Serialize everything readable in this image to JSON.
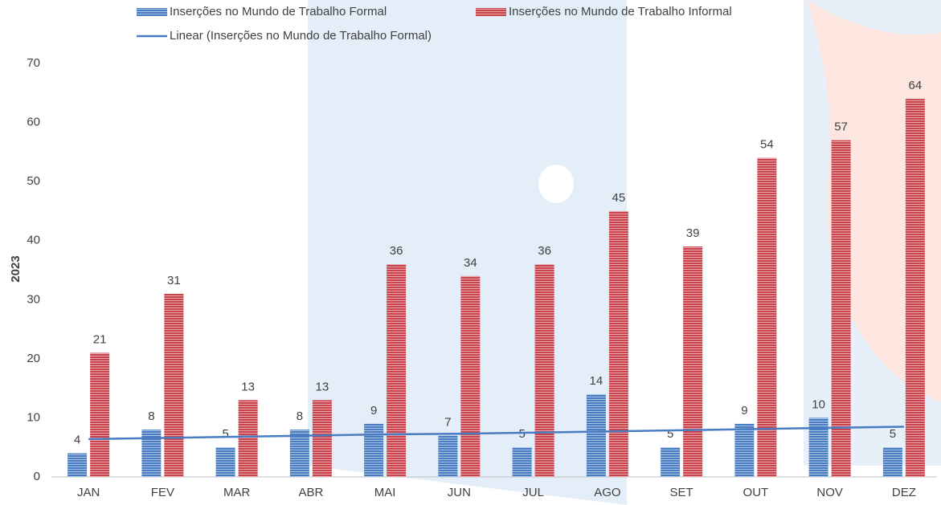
{
  "chart_data": {
    "type": "bar",
    "y_label": "2023",
    "categories": [
      "JAN",
      "FEV",
      "MAR",
      "ABR",
      "MAI",
      "JUN",
      "JUL",
      "AGO",
      "SET",
      "OUT",
      "NOV",
      "DEZ"
    ],
    "series": [
      {
        "name": "Inserções no Mundo de Trabalho Formal",
        "color": "#4a7cc2",
        "values": [
          4,
          8,
          5,
          8,
          9,
          7,
          5,
          14,
          5,
          9,
          10,
          5
        ]
      },
      {
        "name": "Inserções no Mundo de Trabalho Informal",
        "color": "#c9434c",
        "values": [
          21,
          31,
          13,
          13,
          36,
          34,
          36,
          45,
          39,
          54,
          57,
          64
        ]
      },
      {
        "name": "Linear (Inserções no Mundo de Trabalho Formal)",
        "type": "line",
        "color": "#4a7cc2",
        "values": [
          6.4,
          6.6,
          6.8,
          7.0,
          7.2,
          7.3,
          7.5,
          7.7,
          7.9,
          8.1,
          8.3,
          8.5
        ]
      }
    ],
    "ylim": [
      0,
      70
    ],
    "yticks": [
      0,
      10,
      20,
      30,
      40,
      50,
      60,
      70
    ],
    "grid": false
  }
}
